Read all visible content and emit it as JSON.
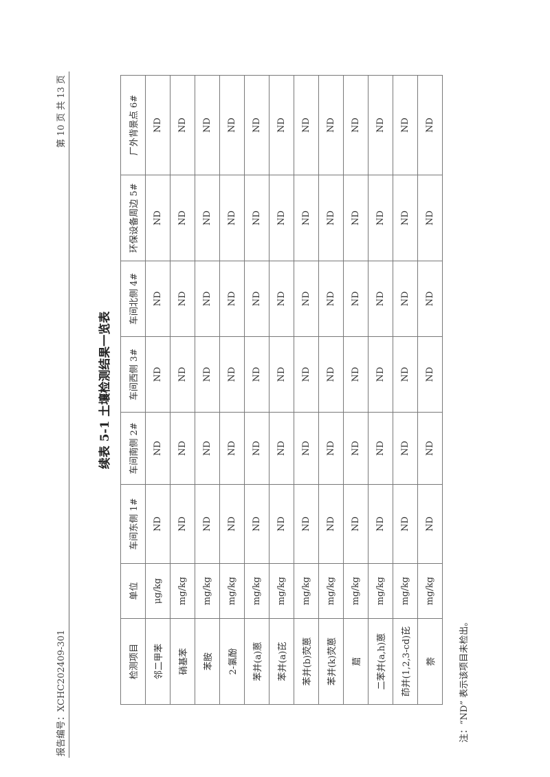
{
  "header": {
    "report_no": "报告编号：XCHC202409-301",
    "page": "第 10 页 共 13 页"
  },
  "title": "续表 5-1 土壤检测结果一览表",
  "table": {
    "columns": [
      "检测项目",
      "单位",
      "车间东侧 1#",
      "车间南侧 2#",
      "车间西侧 3#",
      "车间北侧 4#",
      "环保设备周边 5#",
      "厂外背景点 6#"
    ],
    "rows": [
      [
        "邻二甲苯",
        "μg/kg",
        "ND",
        "ND",
        "ND",
        "ND",
        "ND",
        "ND"
      ],
      [
        "硝基苯",
        "mg/kg",
        "ND",
        "ND",
        "ND",
        "ND",
        "ND",
        "ND"
      ],
      [
        "苯胺",
        "mg/kg",
        "ND",
        "ND",
        "ND",
        "ND",
        "ND",
        "ND"
      ],
      [
        "2-氯酚",
        "mg/kg",
        "ND",
        "ND",
        "ND",
        "ND",
        "ND",
        "ND"
      ],
      [
        "苯并(a)蒽",
        "mg/kg",
        "ND",
        "ND",
        "ND",
        "ND",
        "ND",
        "ND"
      ],
      [
        "苯并(a)芘",
        "mg/kg",
        "ND",
        "ND",
        "ND",
        "ND",
        "ND",
        "ND"
      ],
      [
        "苯并(b)荧蒽",
        "mg/kg",
        "ND",
        "ND",
        "ND",
        "ND",
        "ND",
        "ND"
      ],
      [
        "苯并(k)荧蒽",
        "mg/kg",
        "ND",
        "ND",
        "ND",
        "ND",
        "ND",
        "ND"
      ],
      [
        "䓛",
        "mg/kg",
        "ND",
        "ND",
        "ND",
        "ND",
        "ND",
        "ND"
      ],
      [
        "二苯并(a,h)蒽",
        "mg/kg",
        "ND",
        "ND",
        "ND",
        "ND",
        "ND",
        "ND"
      ],
      [
        "茚并(1,2,3-cd)芘",
        "mg/kg",
        "ND",
        "ND",
        "ND",
        "ND",
        "ND",
        "ND"
      ],
      [
        "萘",
        "mg/kg",
        "ND",
        "ND",
        "ND",
        "ND",
        "ND",
        "ND"
      ]
    ]
  },
  "note": "注：“ND” 表示该项目未检出。"
}
